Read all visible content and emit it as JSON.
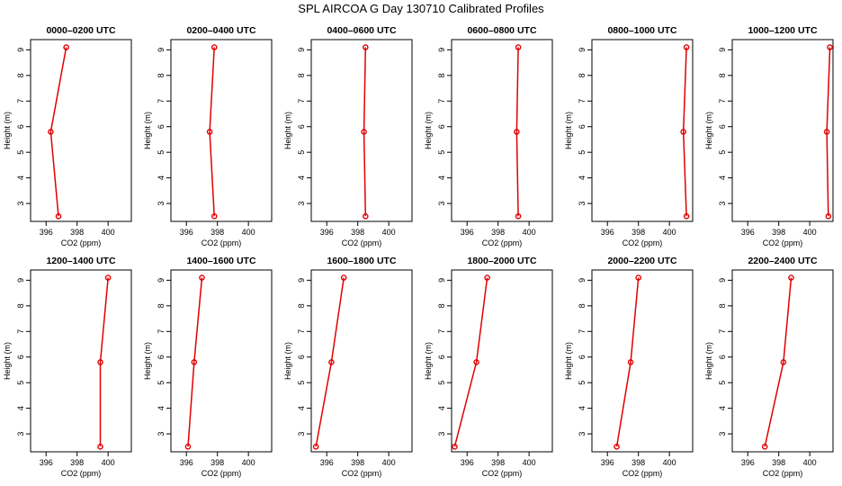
{
  "figure": {
    "title": "SPL AIRCOA G  Day 130710  Calibrated Profiles"
  },
  "style": {
    "series_color": "#e00000",
    "axis_color": "#000000"
  },
  "chart_data": [
    {
      "type": "line",
      "title": "0000–0200 UTC",
      "xlabel": "CO2 (ppm)",
      "ylabel": "Height (m)",
      "xlim": [
        395,
        401.5
      ],
      "ylim": [
        2.3,
        9.4
      ],
      "xticks": [
        396,
        398,
        400
      ],
      "yticks": [
        3,
        4,
        5,
        6,
        7,
        8,
        9
      ],
      "x": [
        397.3,
        396.3,
        396.8
      ],
      "y": [
        9.1,
        5.8,
        2.5
      ]
    },
    {
      "type": "line",
      "title": "0200–0400 UTC",
      "xlabel": "CO2 (ppm)",
      "ylabel": "Height (m)",
      "xlim": [
        395,
        401.5
      ],
      "ylim": [
        2.3,
        9.4
      ],
      "xticks": [
        396,
        398,
        400
      ],
      "yticks": [
        3,
        4,
        5,
        6,
        7,
        8,
        9
      ],
      "x": [
        397.8,
        397.5,
        397.8
      ],
      "y": [
        9.1,
        5.8,
        2.5
      ]
    },
    {
      "type": "line",
      "title": "0400–0600 UTC",
      "xlabel": "CO2 (ppm)",
      "ylabel": "Height (m)",
      "xlim": [
        395,
        401.5
      ],
      "ylim": [
        2.3,
        9.4
      ],
      "xticks": [
        396,
        398,
        400
      ],
      "yticks": [
        3,
        4,
        5,
        6,
        7,
        8,
        9
      ],
      "x": [
        398.5,
        398.4,
        398.5
      ],
      "y": [
        9.1,
        5.8,
        2.5
      ]
    },
    {
      "type": "line",
      "title": "0600–0800 UTC",
      "xlabel": "CO2 (ppm)",
      "ylabel": "Height (m)",
      "xlim": [
        395,
        401.5
      ],
      "ylim": [
        2.3,
        9.4
      ],
      "xticks": [
        396,
        398,
        400
      ],
      "yticks": [
        3,
        4,
        5,
        6,
        7,
        8,
        9
      ],
      "x": [
        399.3,
        399.2,
        399.3
      ],
      "y": [
        9.1,
        5.8,
        2.5
      ]
    },
    {
      "type": "line",
      "title": "0800–1000 UTC",
      "xlabel": "CO2 (ppm)",
      "ylabel": "Height (m)",
      "xlim": [
        395,
        401.5
      ],
      "ylim": [
        2.3,
        9.4
      ],
      "xticks": [
        396,
        398,
        400
      ],
      "yticks": [
        3,
        4,
        5,
        6,
        7,
        8,
        9
      ],
      "x": [
        401.1,
        400.9,
        401.1
      ],
      "y": [
        9.1,
        5.8,
        2.5
      ]
    },
    {
      "type": "line",
      "title": "1000–1200 UTC",
      "xlabel": "CO2 (ppm)",
      "ylabel": "Height (m)",
      "xlim": [
        395,
        401.5
      ],
      "ylim": [
        2.3,
        9.4
      ],
      "xticks": [
        396,
        398,
        400
      ],
      "yticks": [
        3,
        4,
        5,
        6,
        7,
        8,
        9
      ],
      "x": [
        401.3,
        401.1,
        401.2
      ],
      "y": [
        9.1,
        5.8,
        2.5
      ]
    },
    {
      "type": "line",
      "title": "1200–1400 UTC",
      "xlabel": "CO2 (ppm)",
      "ylabel": "Height (m)",
      "xlim": [
        395,
        401.5
      ],
      "ylim": [
        2.3,
        9.4
      ],
      "xticks": [
        396,
        398,
        400
      ],
      "yticks": [
        3,
        4,
        5,
        6,
        7,
        8,
        9
      ],
      "x": [
        400.0,
        399.5,
        399.5
      ],
      "y": [
        9.1,
        5.8,
        2.5
      ]
    },
    {
      "type": "line",
      "title": "1400–1600 UTC",
      "xlabel": "CO2 (ppm)",
      "ylabel": "Height (m)",
      "xlim": [
        395,
        401.5
      ],
      "ylim": [
        2.3,
        9.4
      ],
      "xticks": [
        396,
        398,
        400
      ],
      "yticks": [
        3,
        4,
        5,
        6,
        7,
        8,
        9
      ],
      "x": [
        397.0,
        396.5,
        396.1
      ],
      "y": [
        9.1,
        5.8,
        2.5
      ]
    },
    {
      "type": "line",
      "title": "1600–1800 UTC",
      "xlabel": "CO2 (ppm)",
      "ylabel": "Height (m)",
      "xlim": [
        395,
        401.5
      ],
      "ylim": [
        2.3,
        9.4
      ],
      "xticks": [
        396,
        398,
        400
      ],
      "yticks": [
        3,
        4,
        5,
        6,
        7,
        8,
        9
      ],
      "x": [
        397.1,
        396.3,
        395.3
      ],
      "y": [
        9.1,
        5.8,
        2.5
      ]
    },
    {
      "type": "line",
      "title": "1800–2000 UTC",
      "xlabel": "CO2 (ppm)",
      "ylabel": "Height (m)",
      "xlim": [
        395,
        401.5
      ],
      "ylim": [
        2.3,
        9.4
      ],
      "xticks": [
        396,
        398,
        400
      ],
      "yticks": [
        3,
        4,
        5,
        6,
        7,
        8,
        9
      ],
      "x": [
        397.3,
        396.6,
        395.2
      ],
      "y": [
        9.1,
        5.8,
        2.5
      ]
    },
    {
      "type": "line",
      "title": "2000–2200 UTC",
      "xlabel": "CO2 (ppm)",
      "ylabel": "Height (m)",
      "xlim": [
        395,
        401.5
      ],
      "ylim": [
        2.3,
        9.4
      ],
      "xticks": [
        396,
        398,
        400
      ],
      "yticks": [
        3,
        4,
        5,
        6,
        7,
        8,
        9
      ],
      "x": [
        398.0,
        397.5,
        396.6
      ],
      "y": [
        9.1,
        5.8,
        2.5
      ]
    },
    {
      "type": "line",
      "title": "2200–2400 UTC",
      "xlabel": "CO2 (ppm)",
      "ylabel": "Height (m)",
      "xlim": [
        395,
        401.5
      ],
      "ylim": [
        2.3,
        9.4
      ],
      "xticks": [
        396,
        398,
        400
      ],
      "yticks": [
        3,
        4,
        5,
        6,
        7,
        8,
        9
      ],
      "x": [
        398.8,
        398.3,
        397.1
      ],
      "y": [
        9.1,
        5.8,
        2.5
      ]
    }
  ]
}
